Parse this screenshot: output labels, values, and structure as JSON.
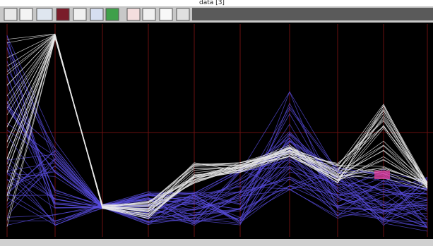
{
  "caption": "data [3]"
}
